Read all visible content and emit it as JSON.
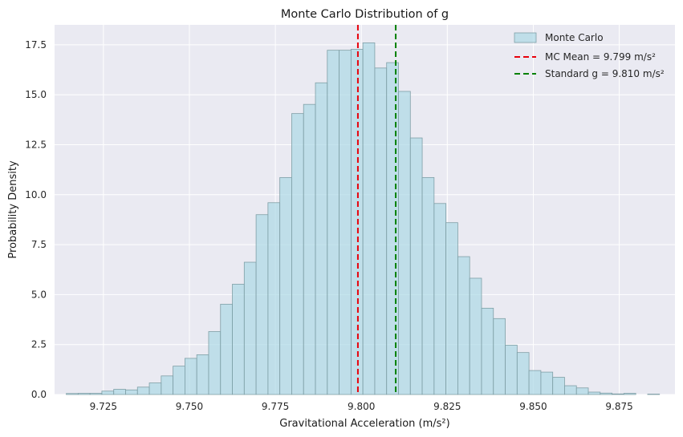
{
  "chart_data": {
    "type": "bar",
    "title": "Monte Carlo Distribution of g",
    "xlabel": "Gravitational Acceleration (m/s²)",
    "ylabel": "Probability Density",
    "xlim": [
      9.7108,
      9.8912
    ],
    "ylim": [
      0,
      18.5
    ],
    "x_ticks": [
      9.725,
      9.75,
      9.775,
      9.8,
      9.825,
      9.85,
      9.875
    ],
    "x_tick_labels": [
      "9.725",
      "9.750",
      "9.775",
      "9.800",
      "9.825",
      "9.850",
      "9.875"
    ],
    "y_ticks": [
      0,
      2.5,
      5,
      7.5,
      10,
      12.5,
      15,
      17.5
    ],
    "y_tick_labels": [
      "0.0",
      "2.5",
      "5.0",
      "7.5",
      "10.0",
      "12.5",
      "15.0",
      "17.5"
    ],
    "grid": true,
    "legend_position": "top-right",
    "histogram": {
      "name": "Monte Carlo",
      "color": "#add8e6",
      "bin_start": 9.7142,
      "bin_width": 0.00345,
      "values": [
        0.05,
        0.06,
        0.06,
        0.17,
        0.26,
        0.23,
        0.37,
        0.58,
        0.93,
        1.42,
        1.81,
        1.99,
        3.15,
        4.52,
        5.52,
        6.62,
        9.0,
        9.6,
        10.86,
        14.06,
        14.52,
        15.6,
        17.23,
        17.23,
        17.28,
        17.6,
        16.34,
        16.61,
        15.17,
        12.84,
        10.86,
        9.56,
        8.6,
        6.9,
        5.82,
        4.32,
        3.8,
        2.47,
        2.1,
        1.2,
        1.12,
        0.86,
        0.44,
        0.33,
        0.12,
        0.07,
        0.03,
        0.06,
        0.0,
        0.02
      ]
    },
    "vlines": [
      {
        "name": "MC Mean = 9.799 m/s²",
        "x": 9.799,
        "color": "#e8000b",
        "style": "dashed"
      },
      {
        "name": "Standard g = 9.810 m/s²",
        "x": 9.81,
        "color": "#008000",
        "style": "dashed"
      }
    ],
    "legend": [
      "Monte Carlo",
      "MC Mean = 9.799 m/s²",
      "Standard g = 9.810 m/s²"
    ]
  },
  "colors": {
    "plot_background": "#eaeaf2",
    "grid": "#ffffff",
    "bar_edge": "#7f9fa6"
  }
}
